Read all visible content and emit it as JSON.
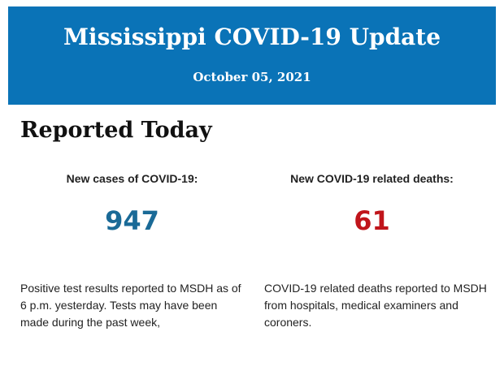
{
  "banner": {
    "title": "Mississippi COVID-19 Update",
    "date": "October 05, 2021",
    "background_color": "#0a73b7"
  },
  "section": {
    "heading": "Reported Today"
  },
  "stats": {
    "cases": {
      "label": "New cases of COVID-19:",
      "value": "947",
      "color": "#1a6a97",
      "description": "Positive test results reported to MSDH as of 6 p.m. yesterday. Tests may have been made during the past week,"
    },
    "deaths": {
      "label": "New COVID-19 related deaths:",
      "value": "61",
      "color": "#c0151b",
      "description": "COVID-19 related deaths reported to MSDH from hospitals, medical examiners and coroners."
    }
  }
}
